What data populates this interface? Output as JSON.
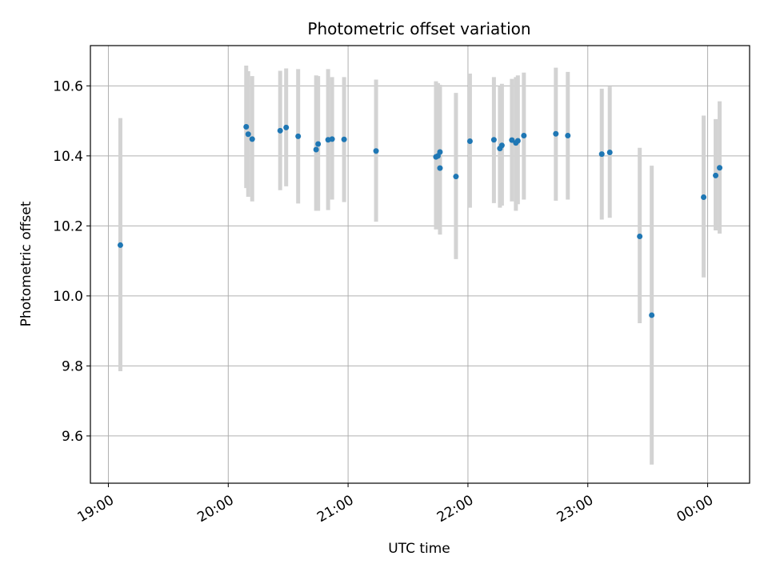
{
  "chart_data": {
    "type": "scatter",
    "title": "Photometric offset variation",
    "xlabel": "UTC time",
    "ylabel": "Photometric offset",
    "grid": true,
    "xlim": [
      "18:51",
      "00:21"
    ],
    "ylim": [
      9.465,
      10.715
    ],
    "x_ticks": [
      "19:00",
      "20:00",
      "21:00",
      "22:00",
      "23:00",
      "00:00"
    ],
    "y_ticks": [
      "9.6",
      "9.8",
      "10.0",
      "10.2",
      "10.4",
      "10.6"
    ],
    "colors": {
      "points": "#1f77b4",
      "errorbars": "#d3d3d3"
    },
    "points": [
      {
        "t": "19:06",
        "y": 10.145,
        "lo": 9.785,
        "hi": 10.508
      },
      {
        "t": "20:09",
        "y": 10.483,
        "lo": 10.308,
        "hi": 10.658
      },
      {
        "t": "20:10",
        "y": 10.462,
        "lo": 10.283,
        "hi": 10.642
      },
      {
        "t": "20:12",
        "y": 10.448,
        "lo": 10.27,
        "hi": 10.628
      },
      {
        "t": "20:26",
        "y": 10.472,
        "lo": 10.302,
        "hi": 10.643
      },
      {
        "t": "20:29",
        "y": 10.481,
        "lo": 10.313,
        "hi": 10.65
      },
      {
        "t": "20:35",
        "y": 10.456,
        "lo": 10.264,
        "hi": 10.648
      },
      {
        "t": "20:44",
        "y": 10.418,
        "lo": 10.243,
        "hi": 10.63
      },
      {
        "t": "20:45",
        "y": 10.434,
        "lo": 10.243,
        "hi": 10.628
      },
      {
        "t": "20:50",
        "y": 10.446,
        "lo": 10.245,
        "hi": 10.648
      },
      {
        "t": "20:52",
        "y": 10.448,
        "lo": 10.275,
        "hi": 10.625
      },
      {
        "t": "20:58",
        "y": 10.447,
        "lo": 10.268,
        "hi": 10.625
      },
      {
        "t": "21:14",
        "y": 10.414,
        "lo": 10.212,
        "hi": 10.618
      },
      {
        "t": "21:44",
        "y": 10.397,
        "lo": 10.19,
        "hi": 10.613
      },
      {
        "t": "21:45",
        "y": 10.4,
        "lo": 10.2,
        "hi": 10.608
      },
      {
        "t": "21:46",
        "y": 10.365,
        "lo": 10.175,
        "hi": 10.603
      },
      {
        "t": "21:46",
        "y": 10.411,
        "lo": 10.22,
        "hi": 10.6
      },
      {
        "t": "21:54",
        "y": 10.341,
        "lo": 10.105,
        "hi": 10.58
      },
      {
        "t": "22:01",
        "y": 10.442,
        "lo": 10.252,
        "hi": 10.635
      },
      {
        "t": "22:13",
        "y": 10.446,
        "lo": 10.265,
        "hi": 10.625
      },
      {
        "t": "22:16",
        "y": 10.421,
        "lo": 10.252,
        "hi": 10.6
      },
      {
        "t": "22:17",
        "y": 10.43,
        "lo": 10.258,
        "hi": 10.606
      },
      {
        "t": "22:22",
        "y": 10.445,
        "lo": 10.27,
        "hi": 10.62
      },
      {
        "t": "22:24",
        "y": 10.437,
        "lo": 10.243,
        "hi": 10.625
      },
      {
        "t": "22:25",
        "y": 10.443,
        "lo": 10.262,
        "hi": 10.63
      },
      {
        "t": "22:28",
        "y": 10.458,
        "lo": 10.275,
        "hi": 10.638
      },
      {
        "t": "22:44",
        "y": 10.463,
        "lo": 10.272,
        "hi": 10.652
      },
      {
        "t": "22:50",
        "y": 10.458,
        "lo": 10.275,
        "hi": 10.64
      },
      {
        "t": "23:07",
        "y": 10.405,
        "lo": 10.218,
        "hi": 10.592
      },
      {
        "t": "23:11",
        "y": 10.41,
        "lo": 10.223,
        "hi": 10.598
      },
      {
        "t": "23:26",
        "y": 10.17,
        "lo": 9.922,
        "hi": 10.423
      },
      {
        "t": "23:32",
        "y": 9.945,
        "lo": 9.518,
        "hi": 10.372
      },
      {
        "t": "23:58",
        "y": 10.282,
        "lo": 10.053,
        "hi": 10.515
      },
      {
        "t": "00:04",
        "y": 10.344,
        "lo": 10.187,
        "hi": 10.505
      },
      {
        "t": "00:06",
        "y": 10.366,
        "lo": 10.178,
        "hi": 10.556
      }
    ]
  }
}
